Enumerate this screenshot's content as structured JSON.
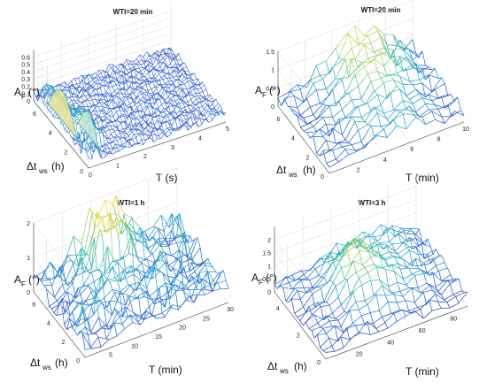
{
  "chart_data": [
    {
      "type": "surface",
      "title": "WTI=20 min",
      "xlabel": "T (s)",
      "ylabel": "Δt_ws (h)",
      "zlabel": "A_F (°)",
      "xlim": [
        0,
        5
      ],
      "ylim": [
        0,
        7
      ],
      "zlim": [
        0,
        0.7
      ],
      "xticks": [
        "0",
        "1",
        "2",
        "3",
        "4",
        "5"
      ],
      "yticks": [
        "0",
        "2",
        "4",
        "6"
      ],
      "zticks": [
        "0",
        "0.1",
        "0.2",
        "0.3",
        "0.4",
        "0.5",
        "0.6"
      ],
      "colormap": [
        "#2b1f8f",
        "#1f5bd6",
        "#1f9fc9",
        "#3bbfa0",
        "#a8cf55",
        "#f0d43a"
      ]
    },
    {
      "type": "surface",
      "title": "WTI=20 min",
      "xlabel": "T (min)",
      "ylabel": "Δt_ws (h)",
      "zlabel": "A_F (°)",
      "xlim": [
        0,
        10
      ],
      "ylim": [
        0,
        7
      ],
      "zlim": [
        0,
        1.5
      ],
      "xticks": [
        "2",
        "4",
        "6",
        "8",
        "10"
      ],
      "yticks": [
        "0",
        "2",
        "4",
        "6"
      ],
      "zticks": [
        "0",
        "0.5",
        "1",
        "1.5"
      ],
      "colormap": [
        "#2b1f8f",
        "#1f5bd6",
        "#1f9fc9",
        "#3bbfa0",
        "#a8cf55",
        "#f0d43a"
      ]
    },
    {
      "type": "surface",
      "title": "WTI=1 h",
      "xlabel": "T (min)",
      "ylabel": "Δt_ws (h)",
      "zlabel": "A_F (°)",
      "xlim": [
        0,
        30
      ],
      "ylim": [
        0,
        7
      ],
      "zlim": [
        0,
        2
      ],
      "xticks": [
        "5",
        "10",
        "15",
        "20",
        "25",
        "30"
      ],
      "yticks": [
        "0",
        "2",
        "4",
        "6"
      ],
      "zticks": [
        "0",
        "1",
        "2"
      ],
      "colormap": [
        "#2b1f8f",
        "#1f5bd6",
        "#1f9fc9",
        "#3bbfa0",
        "#a8cf55",
        "#f0d43a"
      ]
    },
    {
      "type": "surface",
      "title": "WTI=3 h",
      "xlabel": "T (min)",
      "ylabel": "Δt_ws (h)",
      "zlabel": "A_F (°)",
      "xlim": [
        0,
        90
      ],
      "ylim": [
        0,
        5
      ],
      "zlim": [
        0,
        2.5
      ],
      "xticks": [
        "20",
        "40",
        "60",
        "80"
      ],
      "yticks": [
        "0",
        "2",
        "4"
      ],
      "zticks": [
        "0",
        "0.5",
        "1",
        "1.5",
        "2"
      ],
      "colormap": [
        "#2b1f8f",
        "#1f5bd6",
        "#1f9fc9",
        "#3bbfa0",
        "#a8cf55",
        "#f0d43a"
      ]
    }
  ]
}
